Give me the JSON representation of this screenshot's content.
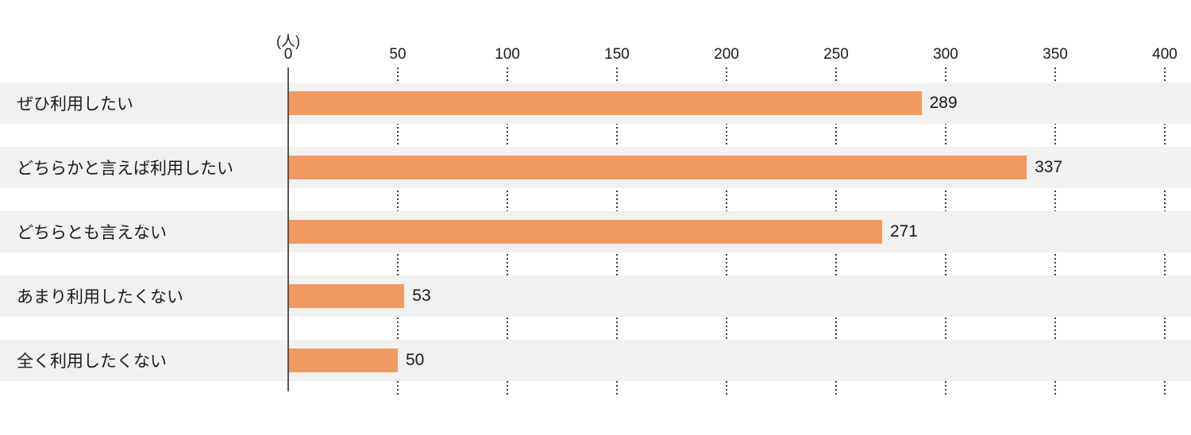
{
  "chart_data": {
    "type": "bar",
    "orientation": "horizontal",
    "unit_label": "(人)",
    "categories": [
      "ぜひ利用したい",
      "どちらかと言えば利用したい",
      "どちらとも言えない",
      "あまり利用したくない",
      "全く利用したくない"
    ],
    "values": [
      289,
      337,
      271,
      53,
      50
    ],
    "xlim": [
      0,
      400
    ],
    "tick_interval": 50,
    "tick_labels": [
      "0",
      "50",
      "100",
      "150",
      "200",
      "250",
      "300",
      "350",
      "400"
    ],
    "grid": "dotted-vertical-in-row-gaps",
    "legend": "none",
    "title": "",
    "colors": {
      "bar": "#F09A62",
      "row_band": "#F1F1F1",
      "axis_line": "#555555",
      "grid_dots": "#3C3C3C",
      "text": "#1A1A1A"
    }
  }
}
